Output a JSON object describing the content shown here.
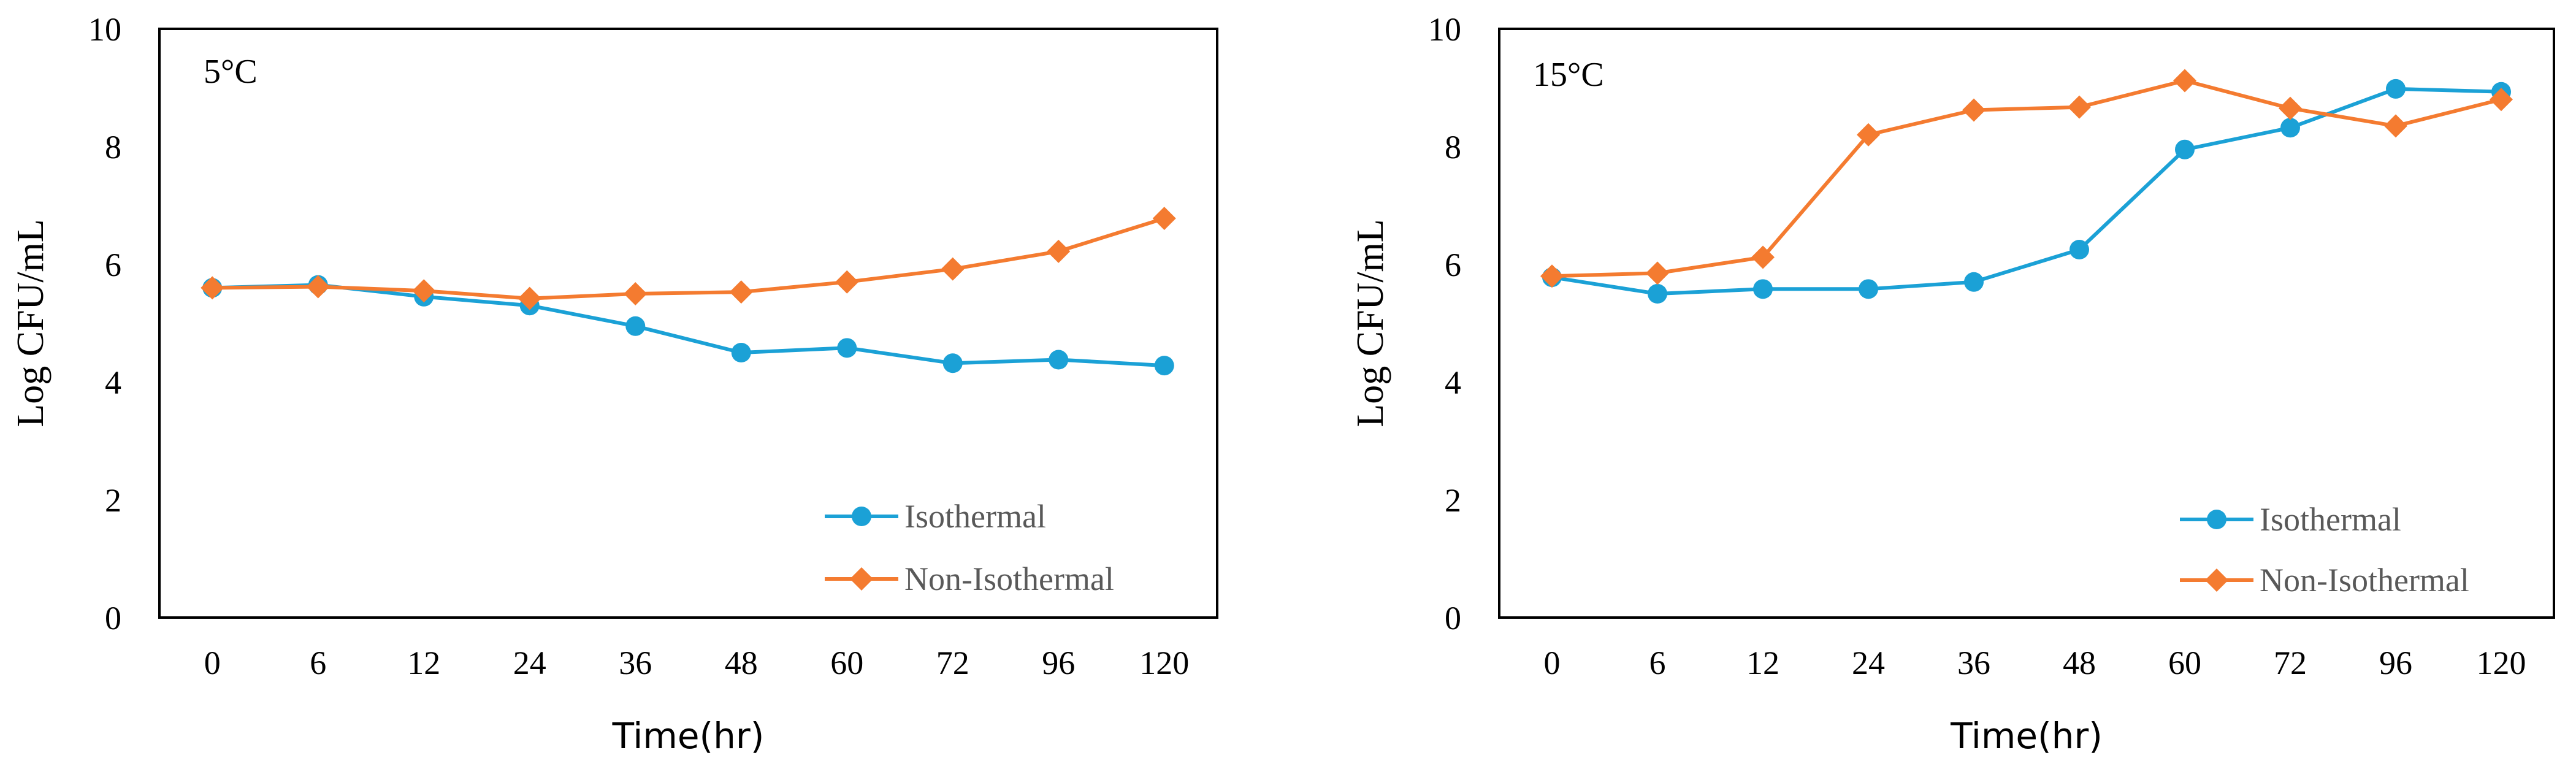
{
  "chart_data": [
    {
      "type": "line",
      "title": "5°C",
      "xlabel": "Time(hr)",
      "ylabel": "Log CFU/mL",
      "ylim": [
        0,
        10
      ],
      "yticks": [
        "0",
        "2",
        "4",
        "6",
        "8",
        "10"
      ],
      "categories": [
        "0",
        "6",
        "12",
        "24",
        "36",
        "48",
        "60",
        "72",
        "96",
        "120"
      ],
      "series": [
        {
          "name": "Isothermal",
          "color": "#1BA1D6",
          "marker": "circle",
          "values": [
            5.6,
            5.65,
            5.45,
            5.3,
            4.95,
            4.5,
            4.58,
            4.32,
            4.38,
            4.28
          ]
        },
        {
          "name": "Non-Isothermal",
          "color": "#F47B30",
          "marker": "diamond",
          "values": [
            5.6,
            5.62,
            5.55,
            5.42,
            5.5,
            5.53,
            5.7,
            5.92,
            6.22,
            6.78
          ]
        }
      ],
      "legend_position": "bottom-right"
    },
    {
      "type": "line",
      "title": "15°C",
      "xlabel": "Time(hr)",
      "ylabel": "Log CFU/mL",
      "ylim": [
        0,
        10
      ],
      "yticks": [
        "0",
        "2",
        "4",
        "6",
        "8",
        "10"
      ],
      "categories": [
        "0",
        "6",
        "12",
        "24",
        "36",
        "48",
        "60",
        "72",
        "96",
        "120"
      ],
      "series": [
        {
          "name": "Isothermal",
          "color": "#1BA1D6",
          "marker": "circle",
          "values": [
            5.78,
            5.5,
            5.58,
            5.58,
            5.7,
            6.25,
            7.95,
            8.32,
            8.98,
            8.93
          ]
        },
        {
          "name": "Non-Isothermal",
          "color": "#F47B30",
          "marker": "diamond",
          "values": [
            5.8,
            5.85,
            6.12,
            8.2,
            8.62,
            8.67,
            9.12,
            8.65,
            8.35,
            8.8
          ]
        }
      ],
      "legend_position": "bottom-right"
    }
  ]
}
